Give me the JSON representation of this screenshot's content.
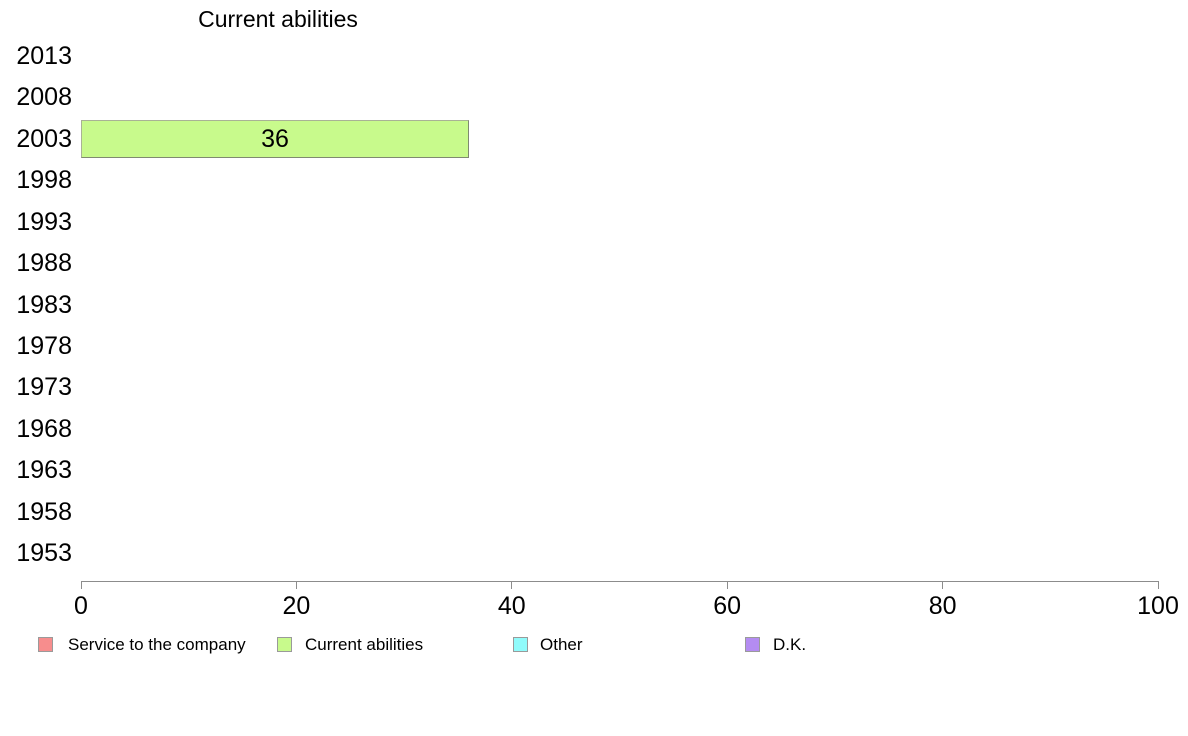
{
  "chart_data": {
    "type": "bar",
    "orientation": "horizontal",
    "title": "Current abilities",
    "categories": [
      "2013",
      "2008",
      "2003",
      "1998",
      "1993",
      "1988",
      "1983",
      "1978",
      "1973",
      "1968",
      "1963",
      "1958",
      "1953"
    ],
    "series": [
      {
        "name": "Current abilities",
        "color": "#c8fa8c",
        "data": [
          {
            "category": "2003",
            "value": 36,
            "label": "36"
          }
        ]
      }
    ],
    "xlim": [
      0,
      100
    ],
    "x_ticks": [
      0,
      20,
      40,
      60,
      80,
      100
    ],
    "grid": false,
    "legend_position": "bottom",
    "legend": [
      {
        "label": "Service to the company",
        "color": "#f78d8d"
      },
      {
        "label": "Current abilities",
        "color": "#c8fa8c"
      },
      {
        "label": "Other",
        "color": "#90fbfb"
      },
      {
        "label": "D.K.",
        "color": "#b48cf2"
      }
    ],
    "axis_color": "#8c8c8c"
  }
}
